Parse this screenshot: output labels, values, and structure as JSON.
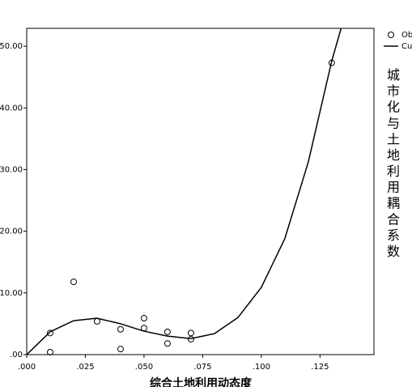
{
  "chart_data": {
    "type": "scatter",
    "y_axis_title": "城市化与土地利用耦合系数",
    "x_axis_title": "综合土地利用动态度",
    "series": [
      {
        "name": "Ob",
        "kind": "scatter",
        "color": "#000000",
        "x": [
          0.01,
          0.01,
          0.02,
          0.03,
          0.04,
          0.04,
          0.05,
          0.05,
          0.06,
          0.06,
          0.07,
          0.07,
          0.13
        ],
        "values": [
          3.5,
          0.4,
          11.8,
          5.4,
          4.1,
          0.9,
          5.9,
          4.3,
          3.7,
          1.8,
          3.5,
          2.5,
          47.3
        ]
      },
      {
        "name": "Cu",
        "kind": "line",
        "color": "#000000",
        "x": [
          0,
          0.01,
          0.02,
          0.03,
          0.04,
          0.05,
          0.06,
          0.07,
          0.08,
          0.09,
          0.1,
          0.11,
          0.12,
          0.13,
          0.134
        ],
        "values": [
          0,
          3.7,
          5.5,
          5.9,
          5.0,
          3.8,
          3.0,
          2.6,
          3.4,
          6.0,
          10.9,
          18.8,
          31.2,
          47.6,
          52.9
        ]
      }
    ],
    "xlim": [
      0,
      0.148
    ],
    "ylim": [
      0,
      52.9
    ],
    "xticks": [
      {
        "value": 0,
        "label": ".000"
      },
      {
        "value": 0.025,
        "label": ".025"
      },
      {
        "value": 0.05,
        "label": ".050"
      },
      {
        "value": 0.075,
        "label": ".075"
      },
      {
        "value": 0.1,
        "label": ".100"
      },
      {
        "value": 0.125,
        "label": ".125"
      }
    ],
    "yticks": [
      {
        "value": 0,
        "label": ".00"
      },
      {
        "value": 10,
        "label": "10.00"
      },
      {
        "value": 20,
        "label": "20.00"
      },
      {
        "value": 30,
        "label": "30.00"
      },
      {
        "value": 40,
        "label": "40.00"
      },
      {
        "value": 50,
        "label": "50.00"
      }
    ],
    "grid": false
  }
}
